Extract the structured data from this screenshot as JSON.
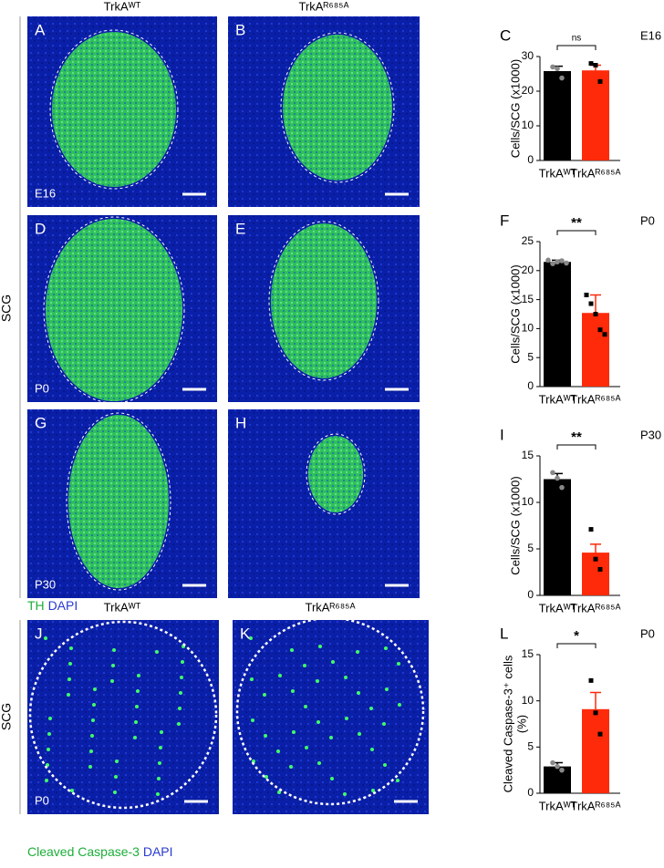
{
  "columns_top": [
    "TrkAᵂᵀ",
    "TrkAᴿ⁶⁸⁵ᴬ"
  ],
  "side_top": "SCG",
  "images_top": [
    {
      "panel": "A",
      "stage": "E16"
    },
    {
      "panel": "B"
    },
    {
      "panel": "D",
      "stage": "P0"
    },
    {
      "panel": "E"
    },
    {
      "panel": "G",
      "stage": "P30"
    },
    {
      "panel": "H"
    }
  ],
  "legend_top": {
    "marker": "TH",
    "counterstain": "DAPI"
  },
  "columns_bottom": [
    "TrkAᵂᵀ",
    "TrkAᴿ⁶⁸⁵ᴬ"
  ],
  "side_bottom": "SCG",
  "images_bottom": [
    {
      "panel": "J",
      "stage": "P0"
    },
    {
      "panel": "K"
    }
  ],
  "legend_bottom": {
    "marker": "Cleaved Caspase-3",
    "counterstain": "DAPI"
  },
  "chart_data": [
    {
      "type": "bar",
      "panel": "C",
      "stage": "E16",
      "significance": "ns",
      "ylabel": "Cells/SCG (x1000)",
      "categories": [
        "TrkAᵂᵀ",
        "TrkAᴿ⁶⁸⁵ᴬ"
      ],
      "values": [
        25.8,
        26
      ],
      "errors": [
        1.4,
        1.5
      ],
      "points": [
        [
          27,
          26.5,
          23.8
        ],
        [
          28,
          27.5,
          22.8
        ]
      ],
      "colors": [
        "#000000",
        "#ff2a0a"
      ],
      "ylim": [
        0,
        30
      ],
      "yticks": [
        0,
        10,
        20,
        30
      ]
    },
    {
      "type": "bar",
      "panel": "F",
      "stage": "P0",
      "significance": "**",
      "ylabel": "Cells/SCG (x1000)",
      "categories": [
        "TrkAᵂᵀ",
        "TrkAᴿ⁶⁸⁵ᴬ"
      ],
      "values": [
        21.5,
        12.7
      ],
      "errors": [
        0.3,
        3.1
      ],
      "points": [
        [
          21.8,
          21.2,
          21.5,
          21.7,
          21.3
        ],
        [
          15.8,
          14.3,
          12.5,
          9.8,
          9
        ]
      ],
      "colors": [
        "#000000",
        "#ff2a0a"
      ],
      "ylim": [
        0,
        25
      ],
      "yticks": [
        0,
        5,
        10,
        15,
        20,
        25
      ]
    },
    {
      "type": "bar",
      "panel": "I",
      "stage": "P30",
      "significance": "**",
      "ylabel": "Cells/SCG (x1000)",
      "categories": [
        "TrkAᵂᵀ",
        "TrkAᴿ⁶⁸⁵ᴬ"
      ],
      "values": [
        12.5,
        4.6
      ],
      "errors": [
        0.6,
        0.9
      ],
      "points": [
        [
          13.2,
          12.6,
          11.6
        ],
        [
          7.1,
          3.9,
          2.8
        ]
      ],
      "colors": [
        "#000000",
        "#ff2a0a"
      ],
      "ylim": [
        0,
        15
      ],
      "yticks": [
        0,
        5,
        10,
        15
      ]
    },
    {
      "type": "bar",
      "panel": "L",
      "stage": "P0",
      "significance": "*",
      "ylabel": "Cleaved Caspase-3⁺ cells",
      "ylabel_unit": "(%)",
      "categories": [
        "TrkAᵂᵀ",
        "TrkAᴿ⁶⁸⁵ᴬ"
      ],
      "values": [
        2.9,
        9.1
      ],
      "errors": [
        0.4,
        1.8
      ],
      "points": [
        [
          3.3,
          2.9,
          2.5
        ],
        [
          12.2,
          8.7,
          6.4
        ]
      ],
      "colors": [
        "#000000",
        "#ff2a0a"
      ],
      "ylim": [
        0,
        15
      ],
      "yticks": [
        0,
        5,
        10,
        15
      ]
    }
  ]
}
